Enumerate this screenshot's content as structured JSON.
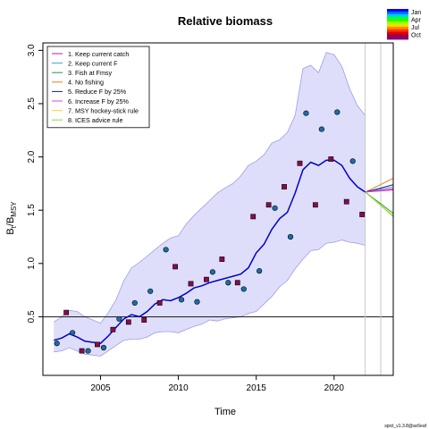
{
  "chart_data": {
    "type": "line",
    "title": "Relative biomass",
    "xlabel": "Time",
    "ylabel_main": "B",
    "ylabel_sub1": "t",
    "ylabel_mid": "/B",
    "ylabel_sub2": "MSY",
    "xlim": [
      2001.3,
      2023.8
    ],
    "ylim": [
      -0.05,
      3.07
    ],
    "xticks": [
      2005,
      2010,
      2015,
      2020
    ],
    "yticks": [
      0.5,
      1.0,
      1.5,
      2.0,
      2.5,
      3.0
    ],
    "reference_line_y": 0.5,
    "vertical_lines_x": [
      2022.0,
      2023.0
    ],
    "estimate": {
      "x": [
        2002.0,
        2002.5,
        2003.0,
        2003.5,
        2004.0,
        2004.5,
        2005.0,
        2005.5,
        2006.0,
        2006.5,
        2007.0,
        2007.5,
        2008.0,
        2008.5,
        2009.0,
        2009.5,
        2010.0,
        2010.5,
        2011.0,
        2011.5,
        2012.0,
        2012.5,
        2013.0,
        2013.5,
        2014.0,
        2014.5,
        2015.0,
        2015.5,
        2016.0,
        2016.5,
        2017.0,
        2017.5,
        2018.0,
        2018.5,
        2019.0,
        2019.5,
        2020.0,
        2020.5,
        2021.0,
        2021.5,
        2022.0
      ],
      "y": [
        0.28,
        0.3,
        0.34,
        0.31,
        0.27,
        0.26,
        0.25,
        0.32,
        0.4,
        0.48,
        0.52,
        0.5,
        0.55,
        0.62,
        0.66,
        0.65,
        0.68,
        0.72,
        0.77,
        0.79,
        0.82,
        0.84,
        0.86,
        0.88,
        0.9,
        0.96,
        1.1,
        1.18,
        1.32,
        1.42,
        1.48,
        1.66,
        1.88,
        1.95,
        1.92,
        1.97,
        1.97,
        1.92,
        1.8,
        1.72,
        1.67
      ]
    },
    "ci_upper": [
      0.45,
      0.5,
      0.56,
      0.55,
      0.5,
      0.47,
      0.44,
      0.54,
      0.66,
      0.84,
      0.96,
      1.01,
      1.07,
      1.13,
      1.19,
      1.24,
      1.26,
      1.37,
      1.45,
      1.52,
      1.59,
      1.66,
      1.71,
      1.75,
      1.82,
      1.92,
      1.96,
      2.02,
      2.13,
      2.16,
      2.23,
      2.39,
      2.83,
      2.86,
      2.79,
      2.98,
      2.96,
      2.85,
      2.64,
      2.48,
      2.39
    ],
    "ci_lower": [
      0.17,
      0.18,
      0.21,
      0.18,
      0.15,
      0.14,
      0.13,
      0.18,
      0.23,
      0.28,
      0.29,
      0.29,
      0.31,
      0.35,
      0.36,
      0.36,
      0.35,
      0.38,
      0.41,
      0.43,
      0.47,
      0.46,
      0.48,
      0.49,
      0.5,
      0.53,
      0.55,
      0.62,
      0.69,
      0.78,
      0.84,
      0.95,
      1.04,
      1.12,
      1.13,
      1.19,
      1.2,
      1.22,
      1.2,
      1.19,
      1.17
    ],
    "observations": {
      "points": [
        {
          "x": 2002.2,
          "y": 0.25,
          "shape": "circle"
        },
        {
          "x": 2002.8,
          "y": 0.54,
          "shape": "square"
        },
        {
          "x": 2003.2,
          "y": 0.35,
          "shape": "circle"
        },
        {
          "x": 2003.8,
          "y": 0.18,
          "shape": "square"
        },
        {
          "x": 2004.2,
          "y": 0.18,
          "shape": "circle"
        },
        {
          "x": 2004.8,
          "y": 0.24,
          "shape": "square"
        },
        {
          "x": 2005.2,
          "y": 0.21,
          "shape": "circle"
        },
        {
          "x": 2005.8,
          "y": 0.38,
          "shape": "square"
        },
        {
          "x": 2006.2,
          "y": 0.48,
          "shape": "circle"
        },
        {
          "x": 2006.8,
          "y": 0.45,
          "shape": "square"
        },
        {
          "x": 2007.2,
          "y": 0.63,
          "shape": "circle"
        },
        {
          "x": 2007.8,
          "y": 0.47,
          "shape": "square"
        },
        {
          "x": 2008.2,
          "y": 0.74,
          "shape": "circle"
        },
        {
          "x": 2008.8,
          "y": 0.63,
          "shape": "square"
        },
        {
          "x": 2009.2,
          "y": 1.13,
          "shape": "circle"
        },
        {
          "x": 2009.8,
          "y": 0.97,
          "shape": "square"
        },
        {
          "x": 2010.2,
          "y": 0.66,
          "shape": "circle"
        },
        {
          "x": 2010.8,
          "y": 0.81,
          "shape": "square"
        },
        {
          "x": 2011.2,
          "y": 0.64,
          "shape": "circle"
        },
        {
          "x": 2011.8,
          "y": 0.85,
          "shape": "square"
        },
        {
          "x": 2012.2,
          "y": 0.92,
          "shape": "circle"
        },
        {
          "x": 2012.8,
          "y": 1.04,
          "shape": "square"
        },
        {
          "x": 2013.2,
          "y": 0.82,
          "shape": "circle"
        },
        {
          "x": 2013.8,
          "y": 0.82,
          "shape": "square"
        },
        {
          "x": 2014.2,
          "y": 0.76,
          "shape": "circle"
        },
        {
          "x": 2014.8,
          "y": 1.44,
          "shape": "square"
        },
        {
          "x": 2015.2,
          "y": 0.93,
          "shape": "circle"
        },
        {
          "x": 2015.8,
          "y": 1.55,
          "shape": "square"
        },
        {
          "x": 2016.2,
          "y": 1.52,
          "shape": "circle"
        },
        {
          "x": 2016.8,
          "y": 1.72,
          "shape": "square"
        },
        {
          "x": 2017.2,
          "y": 1.25,
          "shape": "circle"
        },
        {
          "x": 2017.8,
          "y": 1.94,
          "shape": "square"
        },
        {
          "x": 2018.2,
          "y": 2.41,
          "shape": "circle"
        },
        {
          "x": 2018.8,
          "y": 1.55,
          "shape": "square"
        },
        {
          "x": 2019.2,
          "y": 2.26,
          "shape": "circle"
        },
        {
          "x": 2019.8,
          "y": 1.98,
          "shape": "square"
        },
        {
          "x": 2020.2,
          "y": 2.42,
          "shape": "circle"
        },
        {
          "x": 2020.8,
          "y": 1.58,
          "shape": "square"
        },
        {
          "x": 2021.2,
          "y": 1.96,
          "shape": "circle"
        },
        {
          "x": 2021.8,
          "y": 1.46,
          "shape": "square"
        }
      ]
    },
    "scenarios": [
      {
        "name": "1. Keep current catch",
        "color": "#d0168e",
        "end_y": 1.7
      },
      {
        "name": "2. Keep current F",
        "color": "#3fa0de",
        "end_y": 1.72
      },
      {
        "name": "3. Fish at Fmsy",
        "color": "#17a04a",
        "end_y": 1.47
      },
      {
        "name": "4. No fishing",
        "color": "#f07a1d",
        "end_y": 1.8
      },
      {
        "name": "5. Reduce F by 25%",
        "color": "#1d1e8c",
        "end_y": 1.74
      },
      {
        "name": "6. Increase F by 25%",
        "color": "#e043d4",
        "end_y": 1.69
      },
      {
        "name": "7. MSY hockey-stick rule",
        "color": "#ffd41f",
        "end_y": 1.45
      },
      {
        "name": "8. ICES advice rule",
        "color": "#7fe03a",
        "end_y": 1.44
      }
    ],
    "legend_position": "top-left",
    "season_legend": [
      "Jan",
      "Apr",
      "Jul",
      "Oct"
    ],
    "season_colors": [
      "#0a00ff",
      "#0068ff",
      "#00c8ff",
      "#00ff3a",
      "#29ff00",
      "#a3ff00",
      "#f0e100",
      "#ff8c00",
      "#ff3a00",
      "#e40000",
      "#9a0044",
      "#8a0078"
    ],
    "estimate_color": "#0000cc",
    "ci_fill": "#dedefa",
    "ci_stroke": "#9d9de6",
    "footer": "spict_v1.3.8@ac6eaf"
  }
}
